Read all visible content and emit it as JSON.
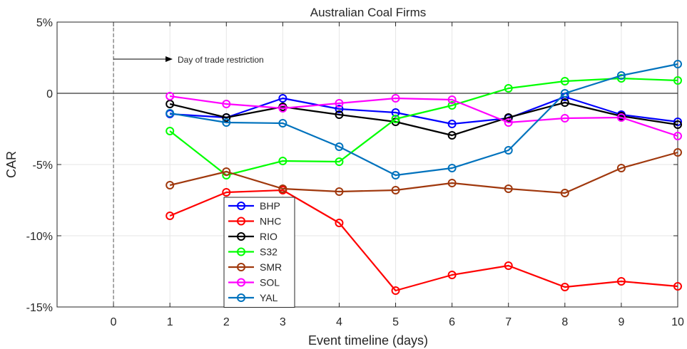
{
  "chart_data": {
    "type": "line",
    "title": "Australian Coal Firms",
    "xlabel": "Event timeline (days)",
    "ylabel": "CAR",
    "xlim": [
      -1,
      10
    ],
    "ylim": [
      -15,
      5
    ],
    "x_ticks": [
      0,
      1,
      2,
      3,
      4,
      5,
      6,
      7,
      8,
      9,
      10
    ],
    "x_tick_labels": [
      "0",
      "1",
      "2",
      "3",
      "4",
      "5",
      "6",
      "7",
      "8",
      "9",
      "10"
    ],
    "y_ticks": [
      5,
      0,
      -5,
      -10,
      -15
    ],
    "y_tick_labels": [
      "5%",
      "0",
      "-5%",
      "-10%",
      "-15%"
    ],
    "grid": true,
    "legend_position": "lower-left",
    "x": [
      1,
      2,
      3,
      4,
      5,
      6,
      7,
      8,
      9,
      10
    ],
    "series": [
      {
        "name": "BHP",
        "color": "#0000ff",
        "values": [
          -1.45,
          -1.7,
          -0.35,
          -1.1,
          -1.35,
          -2.15,
          -1.75,
          -0.25,
          -1.5,
          -2.0
        ]
      },
      {
        "name": "NHC",
        "color": "#ff0000",
        "values": [
          -8.6,
          -6.95,
          -6.8,
          -9.1,
          -13.85,
          -12.75,
          -12.1,
          -13.6,
          -13.2,
          -13.55
        ]
      },
      {
        "name": "RIO",
        "color": "#000000",
        "values": [
          -0.75,
          -1.7,
          -0.95,
          -1.5,
          -2.0,
          -2.95,
          -1.7,
          -0.65,
          -1.6,
          -2.2
        ]
      },
      {
        "name": "S32",
        "color": "#00ff00",
        "values": [
          -2.65,
          -5.75,
          -4.75,
          -4.8,
          -1.8,
          -0.85,
          0.35,
          0.85,
          1.05,
          0.9
        ]
      },
      {
        "name": "SMR",
        "color": "#a0380d",
        "values": [
          -6.45,
          -5.5,
          -6.7,
          -6.9,
          -6.8,
          -6.3,
          -6.7,
          -7.0,
          -5.25,
          -4.15
        ]
      },
      {
        "name": "SOL",
        "color": "#ff00ff",
        "values": [
          -0.2,
          -0.75,
          -1.05,
          -0.7,
          -0.35,
          -0.45,
          -2.05,
          -1.75,
          -1.7,
          -3.0
        ]
      },
      {
        "name": "YAL",
        "color": "#0072bd",
        "values": [
          -1.4,
          -2.05,
          -2.1,
          -3.75,
          -5.75,
          -5.25,
          -4.0,
          0.0,
          1.25,
          2.05
        ]
      }
    ],
    "event_marker_x": 0,
    "annotation": "Day of trade restriction"
  }
}
